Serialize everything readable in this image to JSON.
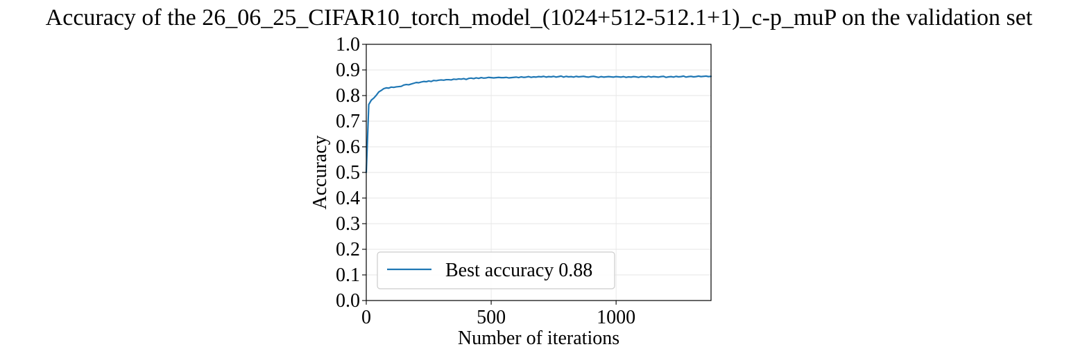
{
  "chart_data": {
    "type": "line",
    "title": "Accuracy of the 26_06_25_CIFAR10_torch_model_(1024+512-512.1+1)_c-p_muP on the validation set",
    "xlabel": "Number of iterations",
    "ylabel": "Accuracy",
    "xlim": [
      0,
      1380
    ],
    "ylim": [
      0.0,
      1.0
    ],
    "x_ticks": [
      0,
      500,
      1000
    ],
    "x_tick_labels": [
      "0",
      "500",
      "1000"
    ],
    "y_ticks": [
      0.0,
      0.1,
      0.2,
      0.3,
      0.4,
      0.5,
      0.6,
      0.7,
      0.8,
      0.9,
      1.0
    ],
    "y_tick_labels": [
      "0.0",
      "0.1",
      "0.2",
      "0.3",
      "0.4",
      "0.5",
      "0.6",
      "0.7",
      "0.8",
      "0.9",
      "1.0"
    ],
    "grid": true,
    "legend_position": "lower-left",
    "series": [
      {
        "name": "Best accuracy 0.88",
        "color": "#1f77b4",
        "x": [
          0,
          10,
          20,
          30,
          40,
          50,
          60,
          70,
          80,
          90,
          100,
          110,
          120,
          130,
          140,
          150,
          160,
          170,
          180,
          190,
          200,
          210,
          220,
          230,
          240,
          250,
          260,
          270,
          280,
          290,
          300,
          310,
          320,
          330,
          340,
          350,
          360,
          370,
          380,
          390,
          400,
          410,
          420,
          430,
          440,
          450,
          460,
          470,
          480,
          490,
          500,
          510,
          520,
          530,
          540,
          550,
          560,
          570,
          580,
          590,
          600,
          610,
          620,
          630,
          640,
          650,
          660,
          670,
          680,
          690,
          700,
          710,
          720,
          730,
          740,
          750,
          760,
          770,
          780,
          790,
          800,
          810,
          820,
          830,
          840,
          850,
          860,
          870,
          880,
          890,
          900,
          910,
          920,
          930,
          940,
          950,
          960,
          970,
          980,
          990,
          1000,
          1010,
          1020,
          1030,
          1040,
          1050,
          1060,
          1070,
          1080,
          1090,
          1100,
          1110,
          1120,
          1130,
          1140,
          1150,
          1160,
          1170,
          1180,
          1190,
          1200,
          1210,
          1220,
          1230,
          1240,
          1250,
          1260,
          1270,
          1280,
          1290,
          1300,
          1310,
          1320,
          1330,
          1340,
          1350,
          1360,
          1370,
          1380
        ],
        "values": [
          0.5,
          0.765,
          0.782,
          0.79,
          0.801,
          0.814,
          0.82,
          0.827,
          0.83,
          0.829,
          0.833,
          0.832,
          0.834,
          0.835,
          0.836,
          0.841,
          0.843,
          0.842,
          0.845,
          0.848,
          0.851,
          0.85,
          0.853,
          0.855,
          0.854,
          0.857,
          0.855,
          0.859,
          0.858,
          0.86,
          0.861,
          0.86,
          0.862,
          0.862,
          0.861,
          0.864,
          0.863,
          0.865,
          0.864,
          0.866,
          0.863,
          0.867,
          0.868,
          0.866,
          0.869,
          0.867,
          0.87,
          0.868,
          0.869,
          0.871,
          0.87,
          0.869,
          0.87,
          0.871,
          0.87,
          0.87,
          0.871,
          0.869,
          0.87,
          0.871,
          0.872,
          0.87,
          0.873,
          0.871,
          0.872,
          0.874,
          0.871,
          0.873,
          0.872,
          0.874,
          0.873,
          0.875,
          0.872,
          0.874,
          0.873,
          0.875,
          0.872,
          0.874,
          0.876,
          0.872,
          0.875,
          0.873,
          0.874,
          0.872,
          0.875,
          0.873,
          0.874,
          0.875,
          0.873,
          0.872,
          0.874,
          0.875,
          0.873,
          0.871,
          0.874,
          0.872,
          0.873,
          0.874,
          0.873,
          0.872,
          0.874,
          0.873,
          0.872,
          0.874,
          0.871,
          0.873,
          0.872,
          0.874,
          0.873,
          0.871,
          0.874,
          0.873,
          0.872,
          0.875,
          0.872,
          0.874,
          0.873,
          0.872,
          0.874,
          0.875,
          0.871,
          0.873,
          0.874,
          0.872,
          0.875,
          0.873,
          0.874,
          0.876,
          0.872,
          0.874,
          0.875,
          0.873,
          0.874,
          0.876,
          0.874,
          0.875,
          0.876,
          0.874,
          0.875
        ]
      }
    ]
  }
}
